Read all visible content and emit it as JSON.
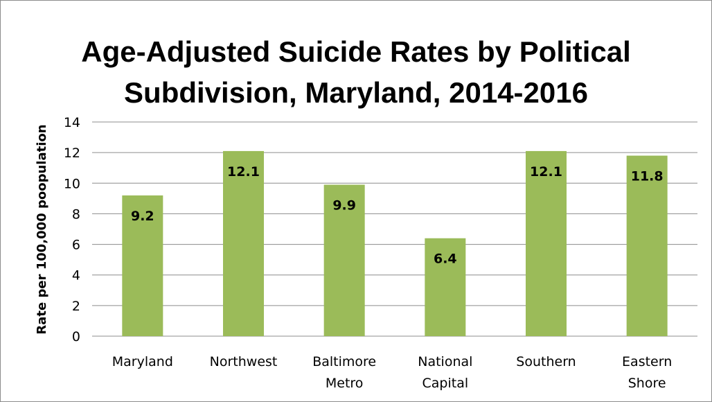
{
  "chart_data": {
    "type": "bar",
    "title_lines": [
      "Age-Adjusted Suicide Rates by Political",
      "Subdivision, Maryland, 2014-2016"
    ],
    "xlabel": "",
    "ylabel": "Rate per 100,000 poopulation",
    "ylim": [
      0,
      14
    ],
    "yticks": [
      "0",
      "2",
      "4",
      "6",
      "8",
      "10",
      "12",
      "14"
    ],
    "grid": true,
    "legend": "none",
    "categories": [
      [
        "Maryland"
      ],
      [
        "Northwest"
      ],
      [
        "Baltimore",
        "Metro"
      ],
      [
        "National",
        "Capital"
      ],
      [
        "Southern"
      ],
      [
        "Eastern",
        "Shore"
      ]
    ],
    "values": [
      9.2,
      12.1,
      9.9,
      6.4,
      12.1,
      11.8
    ],
    "data_labels": [
      "9.2",
      "12.1",
      "9.9",
      "6.4",
      "12.1",
      "11.8"
    ],
    "colors": {
      "bar": "#9bbb59",
      "gridline": "#8c8c8c",
      "frame": "#8c8c8c"
    }
  }
}
